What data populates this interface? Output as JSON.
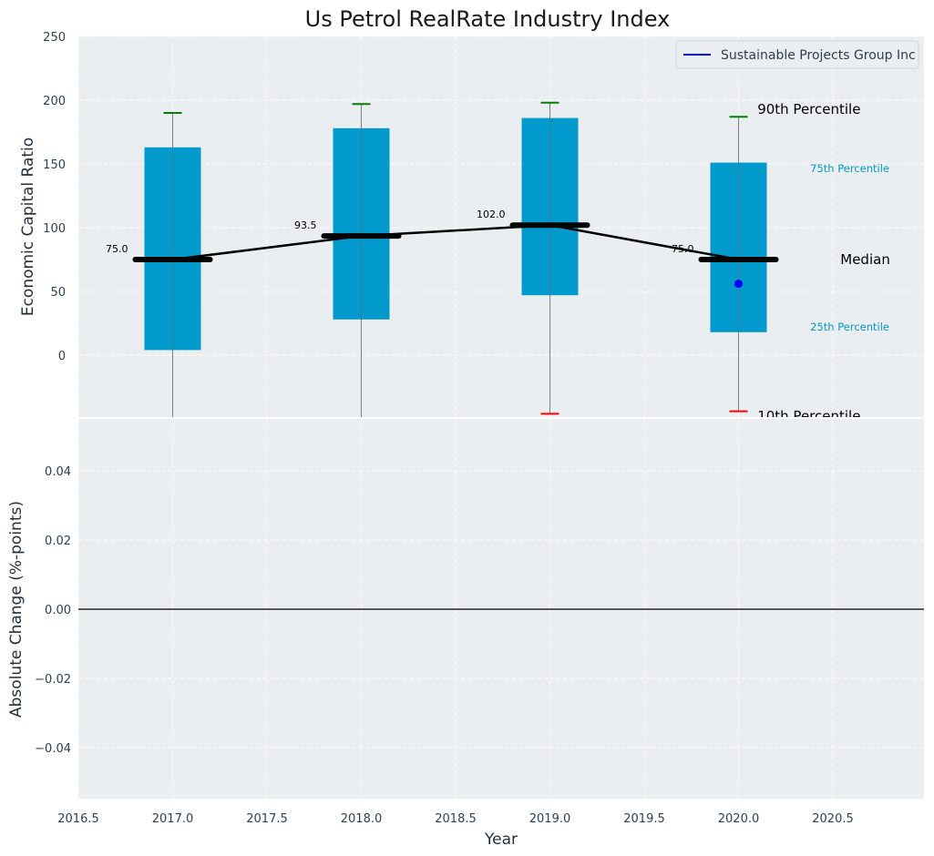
{
  "chart_data": [
    {
      "type": "box",
      "title": "Us Petrol RealRate Industry Index",
      "ylabel": "Economic Capital Ratio",
      "xlim": [
        2016.5,
        2021.0
      ],
      "ylim": [
        -48,
        250
      ],
      "yticks": [
        0,
        50,
        100,
        150,
        200,
        250
      ],
      "yticklabels": [
        "0",
        "50",
        "100",
        "150",
        "200",
        "250"
      ],
      "grid": true,
      "legend": {
        "position": "top-right",
        "entries": [
          {
            "label": "Sustainable Projects Group Inc",
            "color": "#0000ff"
          }
        ]
      },
      "boxes": [
        {
          "x": 2017,
          "p10": -70,
          "p25": 4,
          "median": 75.0,
          "p75": 163,
          "p90": 190,
          "median_label": "75.0"
        },
        {
          "x": 2018,
          "p10": -70,
          "p25": 28,
          "median": 93.5,
          "p75": 178,
          "p90": 197,
          "median_label": "93.5"
        },
        {
          "x": 2019,
          "p10": -46,
          "p25": 47,
          "median": 102.0,
          "p75": 186,
          "p90": 198,
          "median_label": "102.0"
        },
        {
          "x": 2020,
          "p10": -44,
          "p25": 18,
          "median": 75.0,
          "p75": 151,
          "p90": 187,
          "median_label": "75.0"
        }
      ],
      "company_points": [
        {
          "x": 2020,
          "y": 56
        }
      ],
      "annotations": [
        {
          "text": "90th Percentile",
          "x": 2020.1,
          "y": 193,
          "color": "#000000",
          "size": "large"
        },
        {
          "text": "75th Percentile",
          "x": 2020.38,
          "y": 147,
          "color": "#0099cc",
          "size": "small"
        },
        {
          "text": "Median",
          "x": 2020.54,
          "y": 75,
          "color": "#000000",
          "size": "large"
        },
        {
          "text": "25th Percentile",
          "x": 2020.38,
          "y": 23,
          "color": "#0099cc",
          "size": "small"
        },
        {
          "text": "10th Percentile",
          "x": 2020.1,
          "y": -48,
          "color": "#000000",
          "size": "large"
        }
      ],
      "colors": {
        "box": "#009acd",
        "median": "#000000",
        "p90_cap": "#008000",
        "p10_cap": "#ff0000",
        "company": "#0000ff",
        "background": "#ebeef0"
      }
    },
    {
      "type": "line",
      "ylabel": "Absolute Change (%-points)",
      "xlabel": "Year",
      "xlim": [
        2016.5,
        2021.0
      ],
      "ylim": [
        -0.055,
        0.055
      ],
      "xticks": [
        2016.5,
        2017.0,
        2017.5,
        2018.0,
        2018.5,
        2019.0,
        2019.5,
        2020.0,
        2020.5
      ],
      "xticklabels": [
        "2016.5",
        "2017.0",
        "2017.5",
        "2018.0",
        "2018.5",
        "2019.0",
        "2019.5",
        "2020.0",
        "2020.5"
      ],
      "yticks": [
        -0.04,
        -0.02,
        0.0,
        0.02,
        0.04
      ],
      "yticklabels": [
        "−0.04",
        "−0.02",
        "0.00",
        "0.02",
        "0.04"
      ],
      "hlines": [
        0
      ],
      "series": [],
      "grid": true
    }
  ]
}
